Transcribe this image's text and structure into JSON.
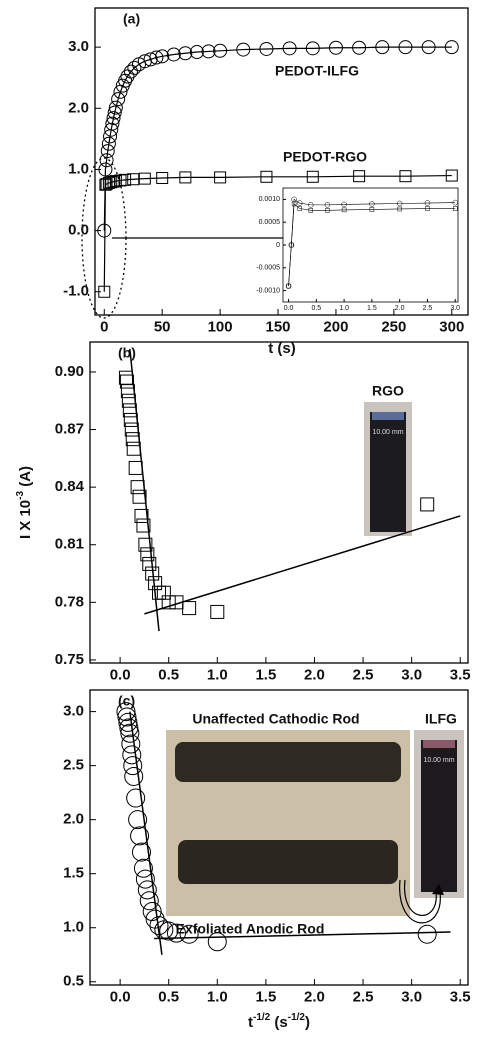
{
  "chart_data": [
    {
      "type": "line",
      "annotations": [
        "(a)",
        "PEDOT-ILFG",
        "PEDOT-RGO"
      ],
      "xlabel": "t (s)",
      "x": [
        0,
        1,
        2,
        3,
        4,
        5,
        6,
        7,
        8,
        9,
        10,
        12,
        14,
        16,
        18,
        20,
        23,
        26,
        30,
        35,
        40,
        45,
        50,
        60,
        70,
        80,
        90,
        100,
        120,
        140,
        160,
        180,
        200,
        220,
        240,
        260,
        280,
        300
      ],
      "series": [
        {
          "name": "PEDOT-ILFG",
          "marker": "circle",
          "color": "#000000",
          "values": [
            0.0,
            1.0,
            1.15,
            1.3,
            1.42,
            1.54,
            1.65,
            1.75,
            1.84,
            1.93,
            2.01,
            2.15,
            2.27,
            2.37,
            2.45,
            2.52,
            2.6,
            2.66,
            2.72,
            2.77,
            2.8,
            2.83,
            2.85,
            2.88,
            2.9,
            2.92,
            2.93,
            2.94,
            2.96,
            2.97,
            2.98,
            2.98,
            2.99,
            2.99,
            3.0,
            3.0,
            3.0,
            3.0
          ]
        },
        {
          "name": "PEDOT-RGO",
          "marker": "square",
          "color": "#000000",
          "x": [
            0,
            1,
            2,
            4,
            6,
            8,
            10,
            14,
            18,
            25,
            35,
            50,
            70,
            100,
            140,
            180,
            220,
            260,
            300
          ],
          "values": [
            -1.0,
            0.75,
            0.76,
            0.78,
            0.79,
            0.8,
            0.81,
            0.82,
            0.83,
            0.84,
            0.85,
            0.86,
            0.87,
            0.87,
            0.88,
            0.88,
            0.89,
            0.89,
            0.9
          ]
        }
      ],
      "xlim": [
        -8,
        314
      ],
      "xticks": [
        0,
        50,
        100,
        150,
        200,
        250,
        300
      ],
      "ylim": [
        -1.38,
        3.64
      ],
      "yticks": [
        {
          "value": -1,
          "label": "-1.0"
        },
        {
          "value": 0,
          "label": "0.0"
        },
        {
          "value": 1,
          "label": "1.0"
        },
        {
          "value": 2,
          "label": "2.0"
        },
        {
          "value": 3,
          "label": "3.0"
        }
      ]
    },
    {
      "type": "line",
      "x": [
        0,
        0.05,
        0.1,
        0.2,
        0.4,
        0.7,
        1.0,
        1.5,
        2.0,
        2.5,
        3.0
      ],
      "series": [
        {
          "name": "PEDOT-ILFG",
          "marker": "circle",
          "color": "#000000",
          "values": [
            -0.0009,
            0.0,
            0.001,
            0.00092,
            0.00088,
            0.00088,
            0.00089,
            0.0009,
            0.00091,
            0.00092,
            0.00093
          ]
        },
        {
          "name": "PEDOT-RGO",
          "marker": "square",
          "color": "#000000",
          "values": [
            -0.0009,
            0.0,
            0.0009,
            0.0008,
            0.00076,
            0.00076,
            0.00077,
            0.00078,
            0.00079,
            0.0008,
            0.0008
          ]
        }
      ],
      "xlim": [
        -0.1,
        3.05
      ],
      "xticks": [
        {
          "value": 0,
          "label": "0.0"
        },
        0.5,
        {
          "value": 1,
          "label": "1.0"
        },
        1.5,
        {
          "value": 2,
          "label": "2.0"
        },
        2.5,
        {
          "value": 3,
          "label": "3.0"
        }
      ],
      "ylim": [
        -0.00125,
        0.00125
      ],
      "yticks": [
        {
          "value": -0.001,
          "label": "-0.0010"
        },
        {
          "value": -0.0005,
          "label": "-0.0005"
        },
        0,
        {
          "value": 0.0005,
          "label": "0.0005"
        },
        {
          "value": 0.001,
          "label": "0.0010"
        }
      ]
    },
    {
      "type": "scatter",
      "annotations": [
        "(b)",
        "RGO",
        "10.00 mm"
      ],
      "ylabel": [
        {
          "text": "I X 10"
        },
        {
          "text": "-3",
          "sup": true
        },
        {
          "text": " (A)"
        }
      ],
      "x": [
        0.06,
        0.07,
        0.08,
        0.09,
        0.1,
        0.11,
        0.12,
        0.13,
        0.14,
        0.16,
        0.18,
        0.2,
        0.22,
        0.24,
        0.26,
        0.28,
        0.3,
        0.33,
        0.36,
        0.4,
        0.45,
        0.5,
        0.58,
        0.71,
        1.0,
        3.16
      ],
      "series": [
        {
          "name": "RGO",
          "marker": "square",
          "color": "#000000",
          "values": [
            0.897,
            0.895,
            0.89,
            0.885,
            0.88,
            0.875,
            0.87,
            0.865,
            0.86,
            0.85,
            0.84,
            0.835,
            0.825,
            0.82,
            0.81,
            0.805,
            0.8,
            0.795,
            0.79,
            0.785,
            0.785,
            0.78,
            0.78,
            0.777,
            0.775,
            0.831
          ]
        }
      ],
      "fit_lines": [
        {
          "x": [
            0.1,
            0.4
          ],
          "y": [
            0.912,
            0.765
          ]
        },
        {
          "x": [
            0.25,
            3.5
          ],
          "y": [
            0.774,
            0.825
          ]
        }
      ],
      "xlim": [
        -0.31,
        3.58
      ],
      "xticks": [
        {
          "value": 0,
          "label": "0.0"
        },
        0.5,
        {
          "value": 1,
          "label": "1.0"
        },
        1.5,
        {
          "value": 2,
          "label": "2.0"
        },
        2.5,
        {
          "value": 3,
          "label": "3.0"
        },
        3.5
      ],
      "ylim": [
        0.7484,
        0.9156
      ],
      "yticks": [
        0.75,
        0.78,
        0.81,
        0.84,
        0.87,
        {
          "value": 0.9,
          "label": "0.90"
        }
      ]
    },
    {
      "type": "scatter",
      "annotations": [
        "(c)",
        "Unaffected Cathodic Rod",
        "Exfoliated Anodic Rod",
        "ILFG",
        "10.00 mm"
      ],
      "xlabel": [
        {
          "text": "t"
        },
        {
          "text": "-1/2",
          "sup": true
        },
        {
          "text": " (s"
        },
        {
          "text": "-1/2",
          "sup": true
        },
        {
          "text": ")"
        }
      ],
      "x": [
        0.06,
        0.07,
        0.08,
        0.09,
        0.1,
        0.11,
        0.12,
        0.13,
        0.14,
        0.16,
        0.18,
        0.2,
        0.22,
        0.24,
        0.26,
        0.28,
        0.3,
        0.33,
        0.36,
        0.4,
        0.45,
        0.5,
        0.58,
        0.71,
        1.0,
        3.16
      ],
      "series": [
        {
          "name": "ILFG",
          "marker": "circle",
          "color": "#000000",
          "values": [
            3.0,
            2.95,
            2.9,
            2.85,
            2.8,
            2.7,
            2.6,
            2.5,
            2.4,
            2.2,
            2.0,
            1.85,
            1.7,
            1.55,
            1.45,
            1.35,
            1.25,
            1.15,
            1.08,
            1.02,
            0.98,
            0.97,
            0.95,
            0.94,
            0.87,
            0.94
          ]
        }
      ],
      "fit_lines": [
        {
          "x": [
            0.1,
            0.43
          ],
          "y": [
            3.0,
            0.75
          ]
        },
        {
          "x": [
            0.35,
            3.4
          ],
          "y": [
            0.9,
            0.96
          ]
        }
      ],
      "xlim": [
        -0.31,
        3.58
      ],
      "xticks": [
        {
          "value": 0,
          "label": "0.0"
        },
        0.5,
        {
          "value": 1,
          "label": "1.0"
        },
        1.5,
        {
          "value": 2,
          "label": "2.0"
        },
        2.5,
        {
          "value": 3,
          "label": "3.0"
        },
        3.5
      ],
      "ylim": [
        0.47,
        3.2
      ],
      "yticks": [
        0.5,
        {
          "value": 1,
          "label": "1.0"
        },
        1.5,
        {
          "value": 2,
          "label": "2.0"
        },
        2.5,
        {
          "value": 3,
          "label": "3.0"
        }
      ]
    }
  ]
}
